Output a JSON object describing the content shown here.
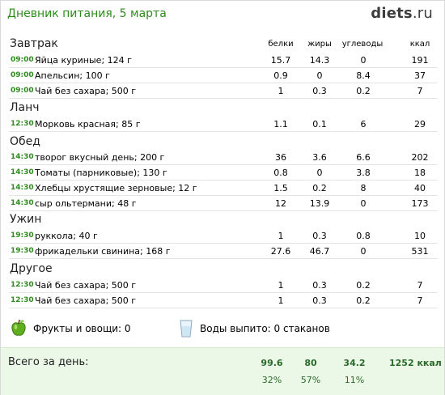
{
  "header": {
    "title": "Дневник питания, 5 марта",
    "logo_main": "diets",
    "logo_tld": ".ru"
  },
  "columns": {
    "protein": "белки",
    "fat": "жиры",
    "carbs": "углеводы",
    "kcal": "ккал"
  },
  "sections": [
    {
      "name": "Завтрак",
      "items": [
        {
          "time": "09:00",
          "food": "Яйца куриные; 124 г",
          "protein": "15.7",
          "fat": "14.3",
          "carbs": "0",
          "kcal": "191"
        },
        {
          "time": "09:00",
          "food": "Апельсин; 100 г",
          "protein": "0.9",
          "fat": "0",
          "carbs": "8.4",
          "kcal": "37"
        },
        {
          "time": "09:00",
          "food": "Чай без сахара; 500 г",
          "protein": "1",
          "fat": "0.3",
          "carbs": "0.2",
          "kcal": "7"
        }
      ]
    },
    {
      "name": "Ланч",
      "items": [
        {
          "time": "12:30",
          "food": "Морковь красная; 85 г",
          "protein": "1.1",
          "fat": "0.1",
          "carbs": "6",
          "kcal": "29"
        }
      ]
    },
    {
      "name": "Обед",
      "items": [
        {
          "time": "14:30",
          "food": "творог вкусный день; 200 г",
          "protein": "36",
          "fat": "3.6",
          "carbs": "6.6",
          "kcal": "202"
        },
        {
          "time": "14:30",
          "food": "Томаты (парниковые); 130 г",
          "protein": "0.8",
          "fat": "0",
          "carbs": "3.8",
          "kcal": "18"
        },
        {
          "time": "14:30",
          "food": "Хлебцы хрустящие зерновые; 12 г",
          "protein": "1.5",
          "fat": "0.2",
          "carbs": "8",
          "kcal": "40"
        },
        {
          "time": "14:30",
          "food": "сыр ольтермани; 48 г",
          "protein": "12",
          "fat": "13.9",
          "carbs": "0",
          "kcal": "173"
        }
      ]
    },
    {
      "name": "Ужин",
      "items": [
        {
          "time": "19:30",
          "food": "руккола; 40 г",
          "protein": "1",
          "fat": "0.3",
          "carbs": "0.8",
          "kcal": "10"
        },
        {
          "time": "19:30",
          "food": "фрикадельки свинина; 168 г",
          "protein": "27.6",
          "fat": "46.7",
          "carbs": "0",
          "kcal": "531"
        }
      ]
    },
    {
      "name": "Другое",
      "items": [
        {
          "time": "12:30",
          "food": "Чай без сахара; 500 г",
          "protein": "1",
          "fat": "0.3",
          "carbs": "0.2",
          "kcal": "7"
        },
        {
          "time": "12:30",
          "food": "Чай без сахара; 500 г",
          "protein": "1",
          "fat": "0.3",
          "carbs": "0.2",
          "kcal": "7"
        }
      ]
    }
  ],
  "extras": {
    "fruits": "Фрукты и овощи: 0",
    "water": "Воды выпито: 0 стаканов"
  },
  "totals": {
    "label": "Всего за день:",
    "protein": "99.6",
    "fat": "80",
    "carbs": "34.2",
    "kcal": "1252 ккал",
    "protein_pct": "32%",
    "fat_pct": "57%",
    "carbs_pct": "11%"
  },
  "colors": {
    "title": "#2e8b1e",
    "time": "#2e8b1e",
    "totals_bg": "#ebf8e7"
  },
  "icons": {
    "fruits": "green-apple-icon",
    "water": "water-glass-icon"
  }
}
